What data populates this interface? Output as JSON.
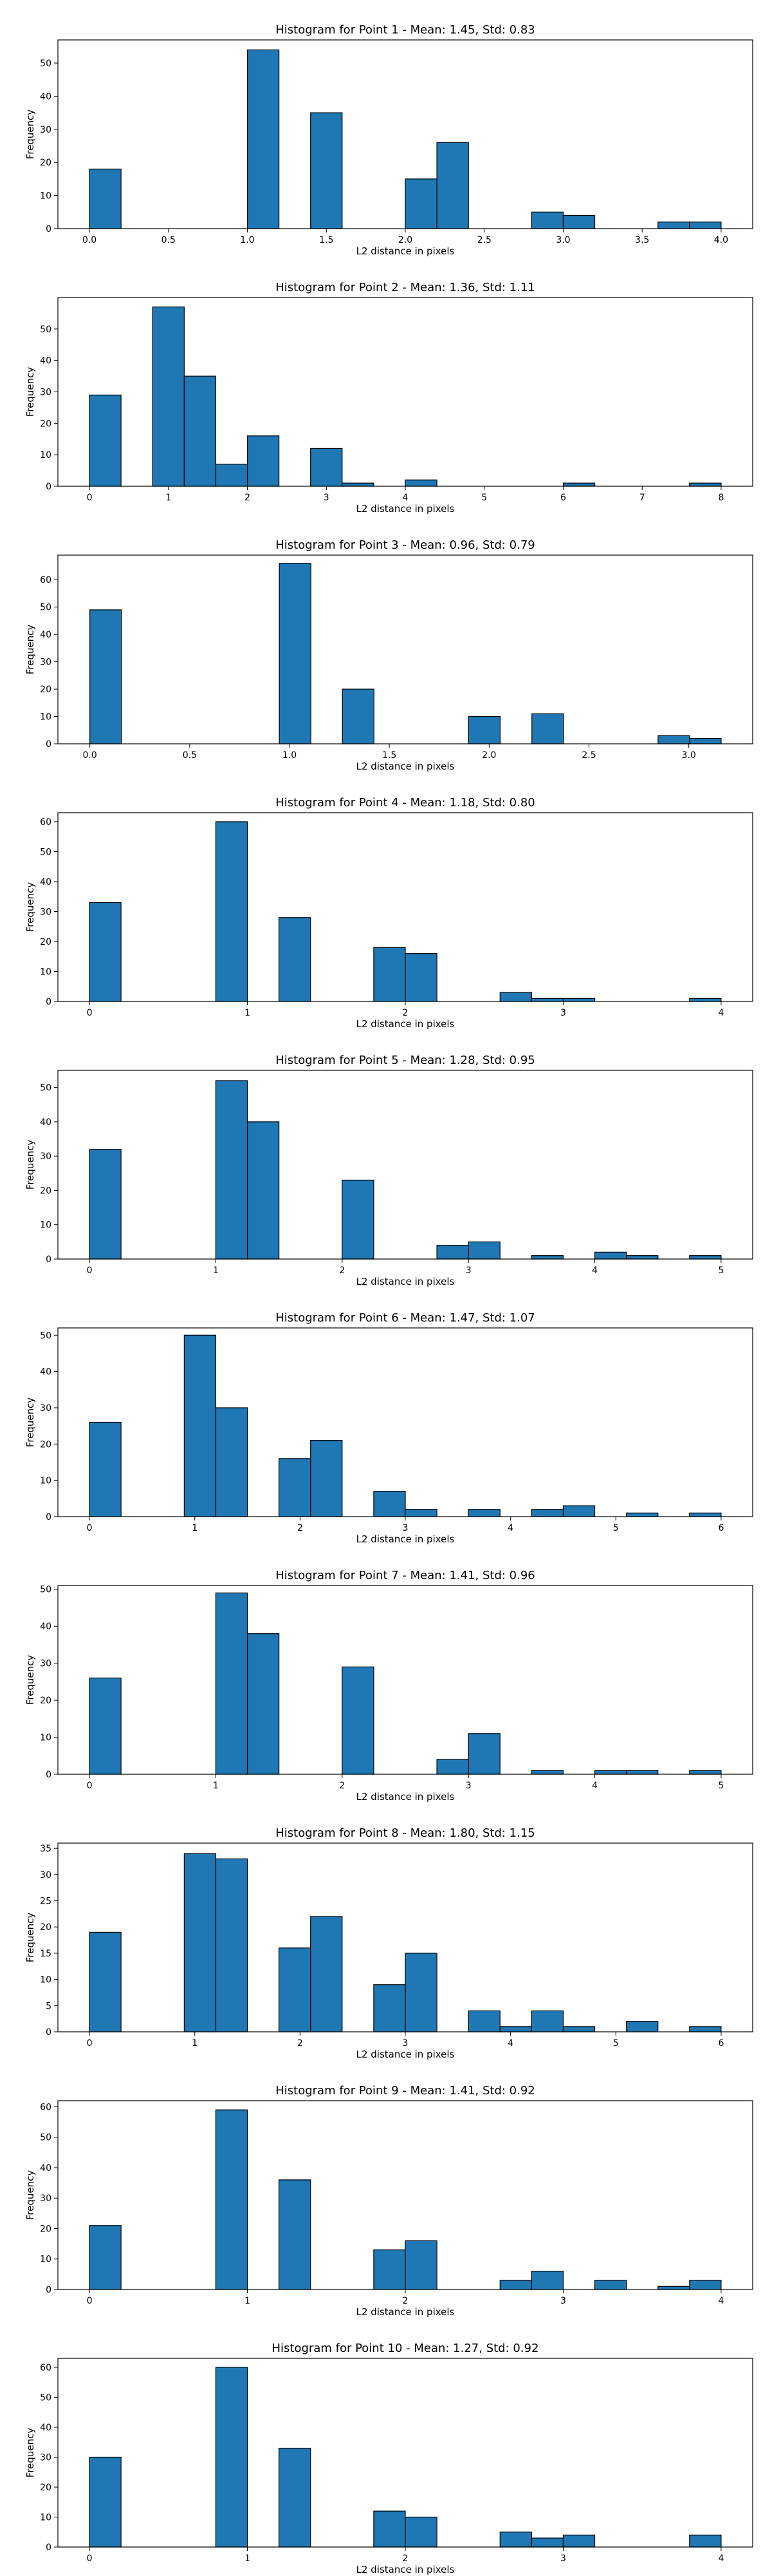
{
  "colors": {
    "bar_fill": "#1f77b4",
    "bar_edge": "#000000",
    "background": "#ffffff"
  },
  "chart_data": [
    {
      "type": "bar",
      "title": "Histogram for Point 1 - Mean: 1.45, Std: 0.83",
      "xlabel": "L2 distance in pixels",
      "ylabel": "Frequency",
      "grid": false,
      "xlim": [
        -0.2,
        4.2
      ],
      "ylim": [
        0,
        57
      ],
      "xticks": [
        0.0,
        0.5,
        1.0,
        1.5,
        2.0,
        2.5,
        3.0,
        3.5,
        4.0
      ],
      "xtick_labels": [
        "0.0",
        "0.5",
        "1.0",
        "1.5",
        "2.0",
        "2.5",
        "3.0",
        "3.5",
        "4.0"
      ],
      "yticks": [
        0,
        10,
        20,
        30,
        40,
        50
      ],
      "bin_width": 0.2,
      "bins": [
        {
          "x": 0.0,
          "count": 18
        },
        {
          "x": 1.0,
          "count": 54
        },
        {
          "x": 1.4,
          "count": 35
        },
        {
          "x": 2.0,
          "count": 15
        },
        {
          "x": 2.2,
          "count": 26
        },
        {
          "x": 2.8,
          "count": 5
        },
        {
          "x": 3.0,
          "count": 4
        },
        {
          "x": 3.6,
          "count": 2
        },
        {
          "x": 3.8,
          "count": 2
        }
      ]
    },
    {
      "type": "bar",
      "title": "Histogram for Point 2 - Mean: 1.36, Std: 1.11",
      "xlabel": "L2 distance in pixels",
      "ylabel": "Frequency",
      "grid": false,
      "xlim": [
        -0.4,
        8.4
      ],
      "ylim": [
        0,
        60
      ],
      "xticks": [
        0,
        1,
        2,
        3,
        4,
        5,
        6,
        7,
        8
      ],
      "xtick_labels": [
        "0",
        "1",
        "2",
        "3",
        "4",
        "5",
        "6",
        "7",
        "8"
      ],
      "yticks": [
        0,
        10,
        20,
        30,
        40,
        50
      ],
      "bin_width": 0.4,
      "bins": [
        {
          "x": 0.0,
          "count": 29
        },
        {
          "x": 0.8,
          "count": 57
        },
        {
          "x": 1.2,
          "count": 35
        },
        {
          "x": 1.6,
          "count": 7
        },
        {
          "x": 2.0,
          "count": 16
        },
        {
          "x": 2.8,
          "count": 12
        },
        {
          "x": 3.2,
          "count": 1
        },
        {
          "x": 4.0,
          "count": 2
        },
        {
          "x": 6.0,
          "count": 1
        },
        {
          "x": 7.6,
          "count": 1
        }
      ]
    },
    {
      "type": "bar",
      "title": "Histogram for Point 3 - Mean: 0.96, Std: 0.79",
      "xlabel": "L2 distance in pixels",
      "ylabel": "Frequency",
      "grid": false,
      "xlim": [
        -0.16,
        3.32
      ],
      "ylim": [
        0,
        69
      ],
      "xticks": [
        0.0,
        0.5,
        1.0,
        1.5,
        2.0,
        2.5,
        3.0
      ],
      "xtick_labels": [
        "0.0",
        "0.5",
        "1.0",
        "1.5",
        "2.0",
        "2.5",
        "3.0"
      ],
      "yticks": [
        0,
        10,
        20,
        30,
        40,
        50,
        60
      ],
      "bin_width": 0.158,
      "bins": [
        {
          "x": 0.0,
          "count": 49
        },
        {
          "x": 0.949,
          "count": 66
        },
        {
          "x": 1.265,
          "count": 20
        },
        {
          "x": 1.897,
          "count": 10
        },
        {
          "x": 2.214,
          "count": 11
        },
        {
          "x": 2.846,
          "count": 3
        },
        {
          "x": 3.004,
          "count": 2
        }
      ]
    },
    {
      "type": "bar",
      "title": "Histogram for Point 4 - Mean: 1.18, Std: 0.80",
      "xlabel": "L2 distance in pixels",
      "ylabel": "Frequency",
      "grid": false,
      "xlim": [
        -0.2,
        4.2
      ],
      "ylim": [
        0,
        63
      ],
      "xticks": [
        0,
        1,
        2,
        3,
        4
      ],
      "xtick_labels": [
        "0",
        "1",
        "2",
        "3",
        "4"
      ],
      "yticks": [
        0,
        10,
        20,
        30,
        40,
        50,
        60
      ],
      "bin_width": 0.2,
      "bins": [
        {
          "x": 0.0,
          "count": 33
        },
        {
          "x": 0.8,
          "count": 60
        },
        {
          "x": 1.2,
          "count": 28
        },
        {
          "x": 1.8,
          "count": 18
        },
        {
          "x": 2.0,
          "count": 16
        },
        {
          "x": 2.6,
          "count": 3
        },
        {
          "x": 2.8,
          "count": 1
        },
        {
          "x": 3.0,
          "count": 1
        },
        {
          "x": 3.8,
          "count": 1
        }
      ]
    },
    {
      "type": "bar",
      "title": "Histogram for Point 5 - Mean: 1.28, Std: 0.95",
      "xlabel": "L2 distance in pixels",
      "ylabel": "Frequency",
      "grid": false,
      "xlim": [
        -0.25,
        5.25
      ],
      "ylim": [
        0,
        55
      ],
      "xticks": [
        0,
        1,
        2,
        3,
        4,
        5
      ],
      "xtick_labels": [
        "0",
        "1",
        "2",
        "3",
        "4",
        "5"
      ],
      "yticks": [
        0,
        10,
        20,
        30,
        40,
        50
      ],
      "bin_width": 0.25,
      "bins": [
        {
          "x": 0.0,
          "count": 32
        },
        {
          "x": 1.0,
          "count": 52
        },
        {
          "x": 1.25,
          "count": 40
        },
        {
          "x": 2.0,
          "count": 23
        },
        {
          "x": 2.75,
          "count": 4
        },
        {
          "x": 3.0,
          "count": 5
        },
        {
          "x": 3.5,
          "count": 1
        },
        {
          "x": 4.0,
          "count": 2
        },
        {
          "x": 4.25,
          "count": 1
        },
        {
          "x": 4.75,
          "count": 1
        }
      ]
    },
    {
      "type": "bar",
      "title": "Histogram for Point 6 - Mean: 1.47, Std: 1.07",
      "xlabel": "L2 distance in pixels",
      "ylabel": "Frequency",
      "grid": false,
      "xlim": [
        -0.3,
        6.3
      ],
      "ylim": [
        0,
        52
      ],
      "xticks": [
        0,
        1,
        2,
        3,
        4,
        5,
        6
      ],
      "xtick_labels": [
        "0",
        "1",
        "2",
        "3",
        "4",
        "5",
        "6"
      ],
      "yticks": [
        0,
        10,
        20,
        30,
        40,
        50
      ],
      "bin_width": 0.3,
      "bins": [
        {
          "x": 0.0,
          "count": 26
        },
        {
          "x": 0.9,
          "count": 50
        },
        {
          "x": 1.2,
          "count": 30
        },
        {
          "x": 1.8,
          "count": 16
        },
        {
          "x": 2.1,
          "count": 21
        },
        {
          "x": 2.7,
          "count": 7
        },
        {
          "x": 3.0,
          "count": 2
        },
        {
          "x": 3.6,
          "count": 2
        },
        {
          "x": 4.2,
          "count": 2
        },
        {
          "x": 4.5,
          "count": 3
        },
        {
          "x": 5.1,
          "count": 1
        },
        {
          "x": 5.7,
          "count": 1
        }
      ]
    },
    {
      "type": "bar",
      "title": "Histogram for Point 7 - Mean: 1.41, Std: 0.96",
      "xlabel": "L2 distance in pixels",
      "ylabel": "Frequency",
      "grid": false,
      "xlim": [
        -0.25,
        5.25
      ],
      "ylim": [
        0,
        51
      ],
      "xticks": [
        0,
        1,
        2,
        3,
        4,
        5
      ],
      "xtick_labels": [
        "0",
        "1",
        "2",
        "3",
        "4",
        "5"
      ],
      "yticks": [
        0,
        10,
        20,
        30,
        40,
        50
      ],
      "bin_width": 0.25,
      "bins": [
        {
          "x": 0.0,
          "count": 26
        },
        {
          "x": 1.0,
          "count": 49
        },
        {
          "x": 1.25,
          "count": 38
        },
        {
          "x": 2.0,
          "count": 29
        },
        {
          "x": 2.75,
          "count": 4
        },
        {
          "x": 3.0,
          "count": 11
        },
        {
          "x": 3.5,
          "count": 1
        },
        {
          "x": 4.0,
          "count": 1
        },
        {
          "x": 4.25,
          "count": 1
        },
        {
          "x": 4.75,
          "count": 1
        }
      ]
    },
    {
      "type": "bar",
      "title": "Histogram for Point 8 - Mean: 1.80, Std: 1.15",
      "xlabel": "L2 distance in pixels",
      "ylabel": "Frequency",
      "grid": false,
      "xlim": [
        -0.3,
        6.3
      ],
      "ylim": [
        0,
        36
      ],
      "xticks": [
        0,
        1,
        2,
        3,
        4,
        5,
        6
      ],
      "xtick_labels": [
        "0",
        "1",
        "2",
        "3",
        "4",
        "5",
        "6"
      ],
      "yticks": [
        0,
        5,
        10,
        15,
        20,
        25,
        30,
        35
      ],
      "bin_width": 0.3,
      "bins": [
        {
          "x": 0.0,
          "count": 19
        },
        {
          "x": 0.9,
          "count": 34
        },
        {
          "x": 1.2,
          "count": 33
        },
        {
          "x": 1.8,
          "count": 16
        },
        {
          "x": 2.1,
          "count": 22
        },
        {
          "x": 2.7,
          "count": 9
        },
        {
          "x": 3.0,
          "count": 15
        },
        {
          "x": 3.6,
          "count": 4
        },
        {
          "x": 3.9,
          "count": 1
        },
        {
          "x": 4.2,
          "count": 4
        },
        {
          "x": 4.5,
          "count": 1
        },
        {
          "x": 5.1,
          "count": 2
        },
        {
          "x": 5.7,
          "count": 1
        }
      ]
    },
    {
      "type": "bar",
      "title": "Histogram for Point 9 - Mean: 1.41, Std: 0.92",
      "xlabel": "L2 distance in pixels",
      "ylabel": "Frequency",
      "grid": false,
      "xlim": [
        -0.2,
        4.2
      ],
      "ylim": [
        0,
        62
      ],
      "xticks": [
        0,
        1,
        2,
        3,
        4
      ],
      "xtick_labels": [
        "0",
        "1",
        "2",
        "3",
        "4"
      ],
      "yticks": [
        0,
        10,
        20,
        30,
        40,
        50,
        60
      ],
      "bin_width": 0.2,
      "bins": [
        {
          "x": 0.0,
          "count": 21
        },
        {
          "x": 0.8,
          "count": 59
        },
        {
          "x": 1.2,
          "count": 36
        },
        {
          "x": 1.8,
          "count": 13
        },
        {
          "x": 2.0,
          "count": 16
        },
        {
          "x": 2.6,
          "count": 3
        },
        {
          "x": 2.8,
          "count": 6
        },
        {
          "x": 3.2,
          "count": 3
        },
        {
          "x": 3.6,
          "count": 1
        },
        {
          "x": 3.8,
          "count": 3
        }
      ]
    },
    {
      "type": "bar",
      "title": "Histogram for Point 10 - Mean: 1.27, Std: 0.92",
      "xlabel": "L2 distance in pixels",
      "ylabel": "Frequency",
      "grid": false,
      "xlim": [
        -0.2,
        4.2
      ],
      "ylim": [
        0,
        63
      ],
      "xticks": [
        0,
        1,
        2,
        3,
        4
      ],
      "xtick_labels": [
        "0",
        "1",
        "2",
        "3",
        "4"
      ],
      "yticks": [
        0,
        10,
        20,
        30,
        40,
        50,
        60
      ],
      "bin_width": 0.2,
      "bins": [
        {
          "x": 0.0,
          "count": 30
        },
        {
          "x": 0.8,
          "count": 60
        },
        {
          "x": 1.2,
          "count": 33
        },
        {
          "x": 1.8,
          "count": 12
        },
        {
          "x": 2.0,
          "count": 10
        },
        {
          "x": 2.6,
          "count": 5
        },
        {
          "x": 2.8,
          "count": 3
        },
        {
          "x": 3.0,
          "count": 4
        },
        {
          "x": 3.8,
          "count": 4
        }
      ]
    }
  ]
}
